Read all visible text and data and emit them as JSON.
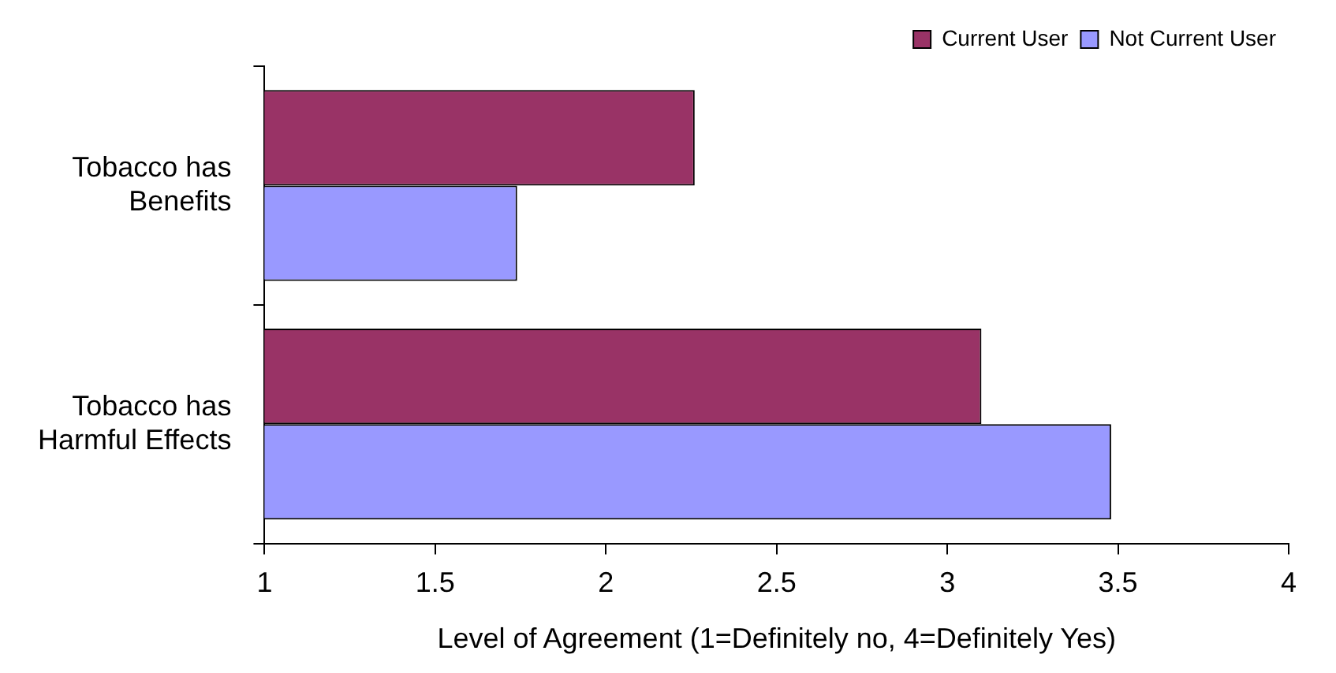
{
  "chart_data": {
    "type": "bar",
    "orientation": "horizontal",
    "xlabel": "Level of Agreement (1=Definitely no, 4=Definitely Yes)",
    "categories": [
      "Tobacco has Benefits",
      "Tobacco has Harmful Effects"
    ],
    "series": [
      {
        "name": "Current User",
        "color": "#993366",
        "values": [
          2.26,
          3.1
        ]
      },
      {
        "name": "Not Current User",
        "color": "#9999ff",
        "values": [
          1.74,
          3.48
        ]
      }
    ],
    "xlim": [
      1,
      4
    ],
    "xticks": [
      1,
      1.5,
      2,
      2.5,
      3,
      3.5,
      4
    ],
    "grid": false,
    "legend": "top right"
  }
}
